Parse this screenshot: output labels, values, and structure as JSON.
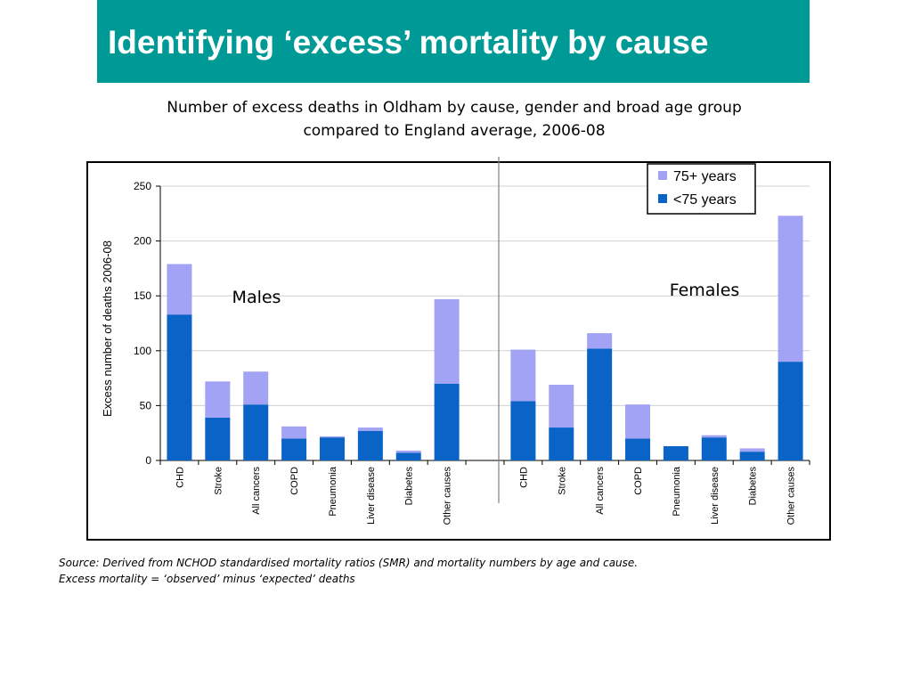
{
  "slide": {
    "title": "Identifying ‘excess’ mortality by cause",
    "subtitle_line1": "Number of excess deaths in Oldham by cause, gender and broad age group",
    "subtitle_line2": "compared to England average, 2006-08",
    "source_line1": "Source: Derived from NCHOD standardised mortality ratios (SMR) and mortality numbers by age and cause.",
    "source_line2": "Excess mortality =  ‘observed’ minus ‘expected’ deaths"
  },
  "colors": {
    "title_bg": "#009a96",
    "under75": "#0a64c8",
    "over75": "#a3a3f5"
  },
  "chart_data": {
    "type": "bar",
    "stacked": true,
    "ylabel": "Excess number of deaths 2006-08",
    "ylim": [
      0,
      250
    ],
    "yticks": [
      0,
      50,
      100,
      150,
      200,
      250
    ],
    "grid": true,
    "legend_position": "top-right",
    "group_labels": [
      "Males",
      "Females"
    ],
    "categories": [
      "CHD",
      "Stroke",
      "All cancers",
      "COPD",
      "Pneumonia",
      "Liver disease",
      "Diabetes",
      "Other causes"
    ],
    "series": [
      {
        "name": "<75 years",
        "color": "#0a64c8",
        "males": [
          133,
          39,
          51,
          20,
          21,
          27,
          7,
          70
        ],
        "females": [
          54,
          30,
          102,
          20,
          13,
          21,
          8,
          90
        ]
      },
      {
        "name": "75+ years",
        "color": "#a3a3f5",
        "males": [
          46,
          33,
          30,
          11,
          1,
          3,
          2,
          77
        ],
        "females": [
          47,
          39,
          14,
          31,
          0,
          2,
          3,
          133
        ]
      }
    ],
    "legend_order": [
      "75+ years",
      "<75 years"
    ]
  }
}
